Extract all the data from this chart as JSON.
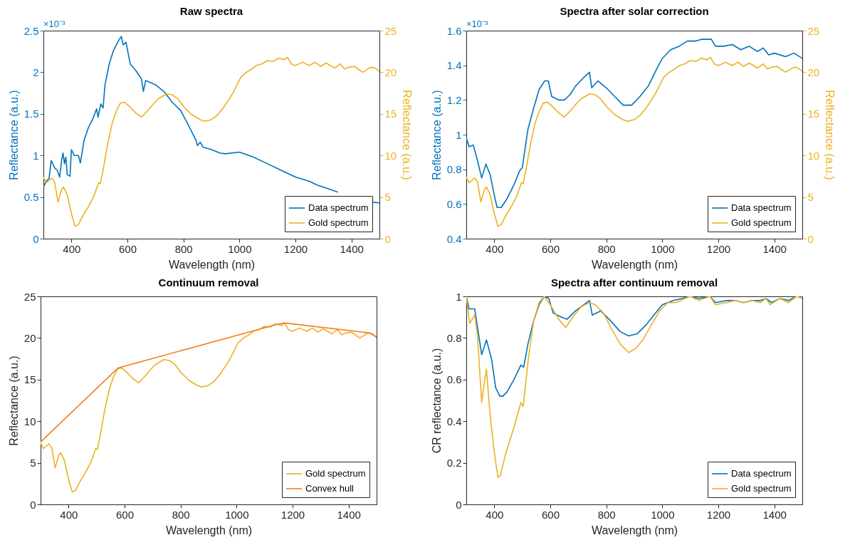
{
  "chart_data": [
    {
      "type": "line",
      "title": "Raw spectra",
      "xlabel": "Wavelength (nm)",
      "ylabel": "Reflectance (a.u.)",
      "y2label": "Reflectance (a.u.)",
      "xlim": [
        300,
        1500
      ],
      "xticks": [
        400,
        600,
        800,
        1000,
        1200,
        1400
      ],
      "ylim": [
        0,
        2.5
      ],
      "yticks": [
        0,
        0.5,
        1,
        1.5,
        2,
        2.5
      ],
      "y2lim": [
        0,
        25
      ],
      "y2ticks": [
        0,
        5,
        10,
        15,
        20,
        25
      ],
      "legend": "bottom right",
      "annotations": [
        "×10⁻³"
      ],
      "series": [
        {
          "name": "Data spectrum",
          "color": "#0072bd",
          "x": [
            300,
            310,
            320,
            328,
            340,
            350,
            358,
            365,
            370,
            375,
            380,
            385,
            395,
            400,
            410,
            425,
            432,
            445,
            460,
            475,
            490,
            495,
            505,
            513,
            520,
            535,
            550,
            565,
            578,
            585,
            595,
            610,
            630,
            650,
            657,
            665,
            700,
            730,
            760,
            790,
            820,
            845,
            850,
            860,
            870,
            900,
            930,
            950,
            1000,
            1050,
            1100,
            1150,
            1200,
            1250,
            1280,
            1300,
            1350,
            1400,
            1475,
            1500
          ],
          "values": [
            0.62,
            0.69,
            0.72,
            0.94,
            0.85,
            0.82,
            0.74,
            0.94,
            1.03,
            0.9,
            0.98,
            0.77,
            0.75,
            1.07,
            1.0,
            1.0,
            0.91,
            1.18,
            1.33,
            1.43,
            1.56,
            1.46,
            1.62,
            1.57,
            1.85,
            2.1,
            2.26,
            2.36,
            2.43,
            2.33,
            2.36,
            2.1,
            2.02,
            1.92,
            1.77,
            1.9,
            1.85,
            1.77,
            1.64,
            1.54,
            1.35,
            1.18,
            1.12,
            1.16,
            1.1,
            1.07,
            1.03,
            1.02,
            1.04,
            0.98,
            0.9,
            0.82,
            0.74,
            0.69,
            0.64,
            0.62,
            0.56,
            null,
            0.44,
            0.43
          ]
        },
        {
          "name": "Gold spectrum",
          "color": "#edb120",
          "axis": "y2",
          "x": [
            300,
            310,
            330,
            340,
            352,
            365,
            372,
            385,
            400,
            413,
            425,
            440,
            460,
            480,
            497,
            503,
            515,
            530,
            545,
            560,
            575,
            590,
            610,
            630,
            650,
            670,
            690,
            710,
            740,
            760,
            780,
            800,
            830,
            860,
            875,
            900,
            920,
            940,
            960,
            975,
            990,
            1005,
            1025,
            1045,
            1060,
            1080,
            1100,
            1120,
            1140,
            1160,
            1172,
            1185,
            1200,
            1225,
            1250,
            1270,
            1290,
            1310,
            1340,
            1360,
            1375,
            1390,
            1410,
            1440,
            1470,
            1485,
            1500
          ],
          "values": [
            7.4,
            6.7,
            7.3,
            6.8,
            4.4,
            5.9,
            6.2,
            5.3,
            3.0,
            1.5,
            1.7,
            2.7,
            3.8,
            5.1,
            6.7,
            6.6,
            8.6,
            11.5,
            13.8,
            15.3,
            16.3,
            16.4,
            15.8,
            15.1,
            14.6,
            15.3,
            16.1,
            16.8,
            17.4,
            17.3,
            16.8,
            15.9,
            14.9,
            14.3,
            14.1,
            14.3,
            14.8,
            15.6,
            16.6,
            17.4,
            18.4,
            19.4,
            20.0,
            20.4,
            20.8,
            21.0,
            21.4,
            21.3,
            21.7,
            21.5,
            21.8,
            21.0,
            20.8,
            21.2,
            20.8,
            21.2,
            20.7,
            21.1,
            20.5,
            21.0,
            20.4,
            20.6,
            20.7,
            20.0,
            20.6,
            20.5,
            20.1
          ]
        }
      ]
    },
    {
      "type": "line",
      "title": "Spectra after solar correction",
      "xlabel": "Wavelength (nm)",
      "ylabel": "Reflectance (a.u.)",
      "y2label": "Reflectance (a.u.)",
      "xlim": [
        300,
        1500
      ],
      "xticks": [
        400,
        600,
        800,
        1000,
        1200,
        1400
      ],
      "ylim": [
        0.4,
        1.6
      ],
      "yticks": [
        0.4,
        0.6,
        0.8,
        1,
        1.2,
        1.4,
        1.6
      ],
      "y2lim": [
        0,
        25
      ],
      "y2ticks": [
        0,
        5,
        10,
        15,
        20,
        25
      ],
      "legend": "bottom right",
      "annotations": [
        "×10⁻³"
      ],
      "series": [
        {
          "name": "Data spectrum",
          "color": "#0072bd",
          "x": [
            300,
            310,
            325,
            340,
            355,
            370,
            385,
            400,
            410,
            425,
            445,
            470,
            490,
            500,
            520,
            540,
            560,
            580,
            593,
            605,
            630,
            650,
            670,
            690,
            720,
            740,
            748,
            770,
            800,
            830,
            860,
            890,
            920,
            950,
            980,
            1000,
            1030,
            1060,
            1090,
            1120,
            1140,
            1165,
            1175,
            1190,
            1220,
            1250,
            1280,
            1310,
            1340,
            1360,
            1380,
            1400,
            1440,
            1470,
            1500
          ],
          "values": [
            0.98,
            0.93,
            0.94,
            0.85,
            0.75,
            0.83,
            0.77,
            0.65,
            0.58,
            0.58,
            0.63,
            0.71,
            0.79,
            0.81,
            1.03,
            1.15,
            1.26,
            1.31,
            1.31,
            1.22,
            1.2,
            1.2,
            1.23,
            1.28,
            1.33,
            1.36,
            1.27,
            1.31,
            1.27,
            1.22,
            1.17,
            1.17,
            1.22,
            1.28,
            1.38,
            1.44,
            1.49,
            1.51,
            1.54,
            1.54,
            1.55,
            1.55,
            1.55,
            1.51,
            1.51,
            1.52,
            1.49,
            1.51,
            1.48,
            1.5,
            1.46,
            1.47,
            1.45,
            1.47,
            1.44
          ]
        },
        {
          "name": "Gold spectrum",
          "color": "#edb120",
          "axis": "y2",
          "x": [
            300,
            310,
            330,
            340,
            352,
            365,
            372,
            385,
            400,
            413,
            425,
            440,
            460,
            480,
            497,
            503,
            515,
            530,
            545,
            560,
            575,
            590,
            610,
            630,
            650,
            670,
            690,
            710,
            740,
            760,
            780,
            800,
            830,
            860,
            875,
            900,
            920,
            940,
            960,
            975,
            990,
            1005,
            1025,
            1045,
            1060,
            1080,
            1100,
            1120,
            1140,
            1160,
            1172,
            1185,
            1200,
            1225,
            1250,
            1270,
            1290,
            1310,
            1340,
            1360,
            1375,
            1390,
            1410,
            1440,
            1470,
            1485,
            1500
          ],
          "values": [
            7.4,
            6.7,
            7.3,
            6.8,
            4.4,
            5.9,
            6.2,
            5.3,
            3.0,
            1.5,
            1.7,
            2.7,
            3.8,
            5.1,
            6.7,
            6.6,
            8.6,
            11.5,
            13.8,
            15.3,
            16.3,
            16.4,
            15.8,
            15.1,
            14.6,
            15.3,
            16.1,
            16.8,
            17.4,
            17.3,
            16.8,
            15.9,
            14.9,
            14.3,
            14.1,
            14.3,
            14.8,
            15.6,
            16.6,
            17.4,
            18.4,
            19.4,
            20.0,
            20.4,
            20.8,
            21.0,
            21.4,
            21.3,
            21.7,
            21.5,
            21.8,
            21.0,
            20.8,
            21.2,
            20.8,
            21.2,
            20.7,
            21.1,
            20.5,
            21.0,
            20.4,
            20.6,
            20.7,
            20.0,
            20.6,
            20.5,
            20.1
          ]
        }
      ]
    },
    {
      "type": "line",
      "title": "Continuum removal",
      "xlabel": "Wavelength (nm)",
      "ylabel": "Reflectance (a.u.)",
      "xlim": [
        300,
        1500
      ],
      "xticks": [
        400,
        600,
        800,
        1000,
        1200,
        1400
      ],
      "ylim": [
        0,
        25
      ],
      "yticks": [
        0,
        5,
        10,
        15,
        20,
        25
      ],
      "legend": "bottom right",
      "series": [
        {
          "name": "Gold spectrum",
          "color": "#edb120",
          "x": [
            300,
            310,
            330,
            340,
            352,
            365,
            372,
            385,
            400,
            413,
            425,
            440,
            460,
            480,
            497,
            503,
            515,
            530,
            545,
            560,
            575,
            590,
            610,
            630,
            650,
            670,
            690,
            710,
            740,
            760,
            780,
            800,
            830,
            860,
            875,
            900,
            920,
            940,
            960,
            975,
            990,
            1005,
            1025,
            1045,
            1060,
            1080,
            1100,
            1120,
            1140,
            1160,
            1172,
            1185,
            1200,
            1225,
            1250,
            1270,
            1290,
            1310,
            1340,
            1360,
            1375,
            1390,
            1410,
            1440,
            1470,
            1485,
            1500
          ],
          "values": [
            7.4,
            6.7,
            7.3,
            6.8,
            4.4,
            5.9,
            6.2,
            5.3,
            3.0,
            1.5,
            1.7,
            2.7,
            3.8,
            5.1,
            6.7,
            6.6,
            8.6,
            11.5,
            13.8,
            15.3,
            16.3,
            16.4,
            15.8,
            15.1,
            14.6,
            15.3,
            16.1,
            16.8,
            17.4,
            17.3,
            16.8,
            15.9,
            14.9,
            14.3,
            14.1,
            14.3,
            14.8,
            15.6,
            16.6,
            17.4,
            18.4,
            19.4,
            20.0,
            20.4,
            20.8,
            21.0,
            21.4,
            21.3,
            21.7,
            21.5,
            21.8,
            21.0,
            20.8,
            21.2,
            20.8,
            21.2,
            20.7,
            21.1,
            20.5,
            21.0,
            20.4,
            20.6,
            20.7,
            20.0,
            20.6,
            20.5,
            20.1
          ]
        },
        {
          "name": "Convex hull",
          "color": "#f57c1f",
          "x": [
            300,
            577,
            1140,
            1172,
            1475,
            1500
          ],
          "values": [
            7.5,
            16.4,
            21.6,
            21.8,
            20.6,
            20.1
          ]
        }
      ]
    },
    {
      "type": "line",
      "title": "Spectra after continuum removal",
      "xlabel": "Wavelength (nm)",
      "ylabel": "CR reflectance (a.u.)",
      "xlim": [
        300,
        1500
      ],
      "xticks": [
        400,
        600,
        800,
        1000,
        1200,
        1400
      ],
      "ylim": [
        0,
        1
      ],
      "yticks": [
        0,
        0.2,
        0.4,
        0.6,
        0.8,
        1
      ],
      "legend": "bottom right",
      "series": [
        {
          "name": "Data spectrum",
          "color": "#0072bd",
          "x": [
            300,
            310,
            330,
            355,
            372,
            390,
            405,
            420,
            430,
            445,
            470,
            495,
            505,
            520,
            540,
            560,
            578,
            595,
            610,
            640,
            660,
            690,
            720,
            740,
            750,
            780,
            810,
            850,
            880,
            910,
            940,
            970,
            1000,
            1040,
            1070,
            1100,
            1130,
            1170,
            1190,
            1230,
            1260,
            1290,
            1320,
            1350,
            1370,
            1390,
            1420,
            1450,
            1480,
            1500
          ],
          "values": [
            1.0,
            0.94,
            0.94,
            0.72,
            0.79,
            0.7,
            0.56,
            0.52,
            0.52,
            0.54,
            0.6,
            0.67,
            0.66,
            0.77,
            0.88,
            0.96,
            1.0,
            0.99,
            0.92,
            0.9,
            0.89,
            0.93,
            0.96,
            0.98,
            0.91,
            0.93,
            0.89,
            0.83,
            0.81,
            0.82,
            0.86,
            0.91,
            0.96,
            0.98,
            0.99,
            1.0,
            0.99,
            1.0,
            0.97,
            0.98,
            0.98,
            0.97,
            0.98,
            0.98,
            0.99,
            0.97,
            0.99,
            0.98,
            1.0,
            1.0
          ]
        },
        {
          "name": "Gold spectrum",
          "color": "#edb120",
          "x": [
            300,
            312,
            330,
            340,
            355,
            365,
            372,
            385,
            400,
            413,
            422,
            440,
            470,
            495,
            503,
            520,
            540,
            560,
            578,
            600,
            630,
            655,
            680,
            710,
            740,
            760,
            790,
            820,
            850,
            880,
            905,
            930,
            960,
            990,
            1020,
            1050,
            1080,
            1100,
            1130,
            1170,
            1190,
            1230,
            1260,
            1290,
            1320,
            1350,
            1370,
            1385,
            1420,
            1450,
            1480,
            1500
          ],
          "values": [
            1.0,
            0.87,
            0.91,
            0.81,
            0.49,
            0.59,
            0.65,
            0.43,
            0.25,
            0.13,
            0.14,
            0.24,
            0.37,
            0.49,
            0.47,
            0.68,
            0.88,
            0.97,
            1.0,
            0.96,
            0.89,
            0.85,
            0.9,
            0.95,
            0.97,
            0.96,
            0.92,
            0.84,
            0.77,
            0.73,
            0.75,
            0.79,
            0.86,
            0.93,
            0.97,
            0.97,
            0.99,
            1.0,
            0.98,
            1.0,
            0.96,
            0.97,
            0.98,
            0.97,
            0.98,
            0.97,
            0.99,
            0.96,
            0.99,
            0.97,
            1.0,
            0.99
          ]
        }
      ]
    }
  ]
}
